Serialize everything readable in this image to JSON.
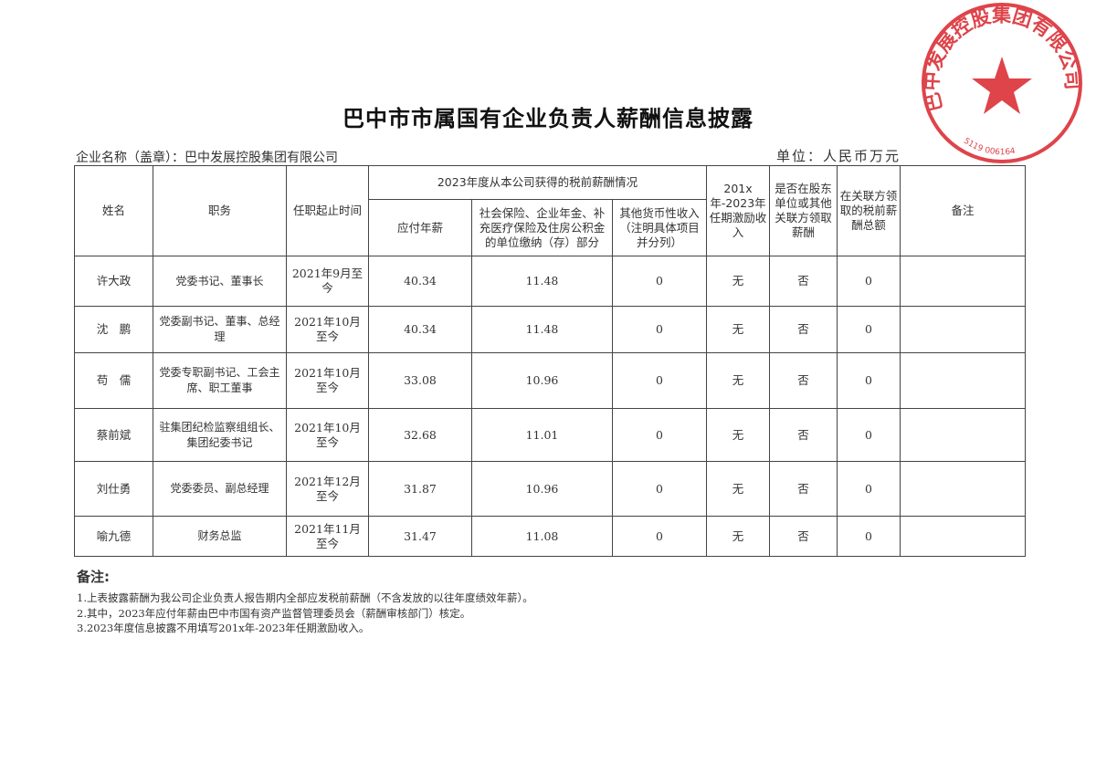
{
  "title": "巴中市市属国有企业负责人薪酬信息披露",
  "company_label": "企业名称（盖章）：巴中发展控股集团有限公司",
  "unit_label": "单位：人民币万元",
  "stamp": {
    "text": "巴中发展控股集团有限公司",
    "number": "5119 006164",
    "color": "#d8232a"
  },
  "table": {
    "headers": {
      "name": "姓名",
      "position": "职务",
      "tenure": "任职起止时间",
      "group_2023": "2023年度从本公司获得的税前薪酬情况",
      "salary": "应付年薪",
      "insurance": "社会保险、企业年金、补充医疗保险及住房公积金的单位缴纳（存）部分",
      "other_income": "其他货币性收入（注明具体项目并分列）",
      "incentive": "201x年-2023年任期激励收入",
      "shareholder_pay": "是否在股东单位或其他关联方领取薪酬",
      "related_total": "在关联方领取的税前薪酬总额",
      "remarks": "备注"
    },
    "rows": [
      {
        "name": "许大政",
        "position": "党委书记、董事长",
        "tenure": "2021年9月至今",
        "salary": "40.34",
        "insurance": "11.48",
        "other_income": "0",
        "incentive": "无",
        "shareholder_pay": "否",
        "related_total": "0",
        "remarks": ""
      },
      {
        "name": "沈　鹏",
        "position": "党委副书记、董事、总经理",
        "tenure": "2021年10月至今",
        "salary": "40.34",
        "insurance": "11.48",
        "other_income": "0",
        "incentive": "无",
        "shareholder_pay": "否",
        "related_total": "0",
        "remarks": ""
      },
      {
        "name": "苟　儒",
        "position": "党委专职副书记、工会主席、职工董事",
        "tenure": "2021年10月至今",
        "salary": "33.08",
        "insurance": "10.96",
        "other_income": "0",
        "incentive": "无",
        "shareholder_pay": "否",
        "related_total": "0",
        "remarks": ""
      },
      {
        "name": "蔡前斌",
        "position": "驻集团纪检监察组组长、集团纪委书记",
        "tenure": "2021年10月至今",
        "salary": "32.68",
        "insurance": "11.01",
        "other_income": "0",
        "incentive": "无",
        "shareholder_pay": "否",
        "related_total": "0",
        "remarks": ""
      },
      {
        "name": "刘仕勇",
        "position": "党委委员、副总经理",
        "tenure": "2021年12月至今",
        "salary": "31.87",
        "insurance": "10.96",
        "other_income": "0",
        "incentive": "无",
        "shareholder_pay": "否",
        "related_total": "0",
        "remarks": ""
      },
      {
        "name": "喻九德",
        "position": "财务总监",
        "tenure": "2021年11月至今",
        "salary": "31.47",
        "insurance": "11.08",
        "other_income": "0",
        "incentive": "无",
        "shareholder_pay": "否",
        "related_total": "0",
        "remarks": ""
      }
    ]
  },
  "notes": {
    "title": "备注:",
    "items": [
      "1.上表披露薪酬为我公司企业负责人报告期内全部应发税前薪酬（不含发放的以往年度绩效年薪）。",
      "2.其中，2023年应付年薪由巴中市国有资产监督管理委员会（薪酬审核部门）核定。",
      "3.2023年度信息披露不用填写201x年-2023年任期激励收入。"
    ]
  }
}
